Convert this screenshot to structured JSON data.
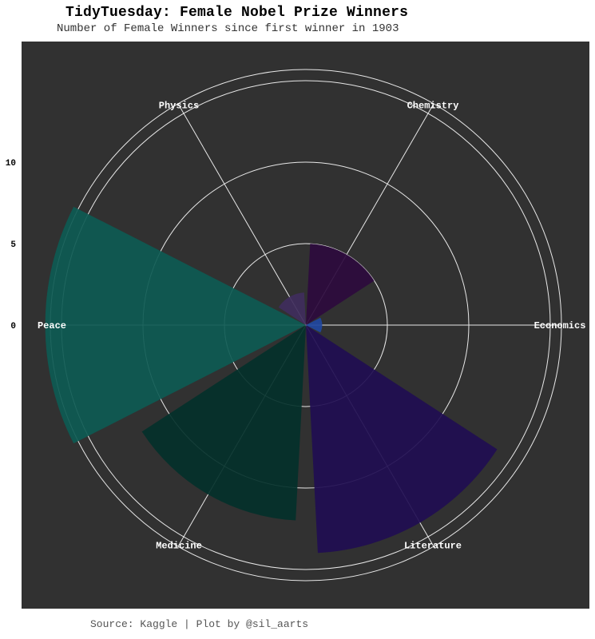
{
  "title": "TidyTuesday: Female Nobel Prize Winners",
  "subtitle": "Number of Female Winners since first winner in 1903",
  "caption": "Source: Kaggle | Plot by @sil_aarts",
  "colors": {
    "panel": "#313131",
    "grid": "#e8e8e8"
  },
  "chart_data": {
    "type": "polar-bar",
    "title": "TidyTuesday: Female Nobel Prize Winners",
    "subtitle": "Number of Female Winners since first winner in 1903",
    "categories": [
      "Chemistry",
      "Economics",
      "Literature",
      "Medicine",
      "Peace",
      "Physics"
    ],
    "values": [
      5,
      1,
      14,
      12,
      16,
      2
    ],
    "bar_colors": [
      "#2d0a3d",
      "#1f46a0",
      "#1f0d51",
      "#03302a",
      "#0d5a52",
      "#3f2c5c"
    ],
    "radial_ticks": [
      0,
      5,
      10
    ],
    "rlim": [
      0,
      16
    ],
    "grid": true,
    "legend": "none"
  }
}
